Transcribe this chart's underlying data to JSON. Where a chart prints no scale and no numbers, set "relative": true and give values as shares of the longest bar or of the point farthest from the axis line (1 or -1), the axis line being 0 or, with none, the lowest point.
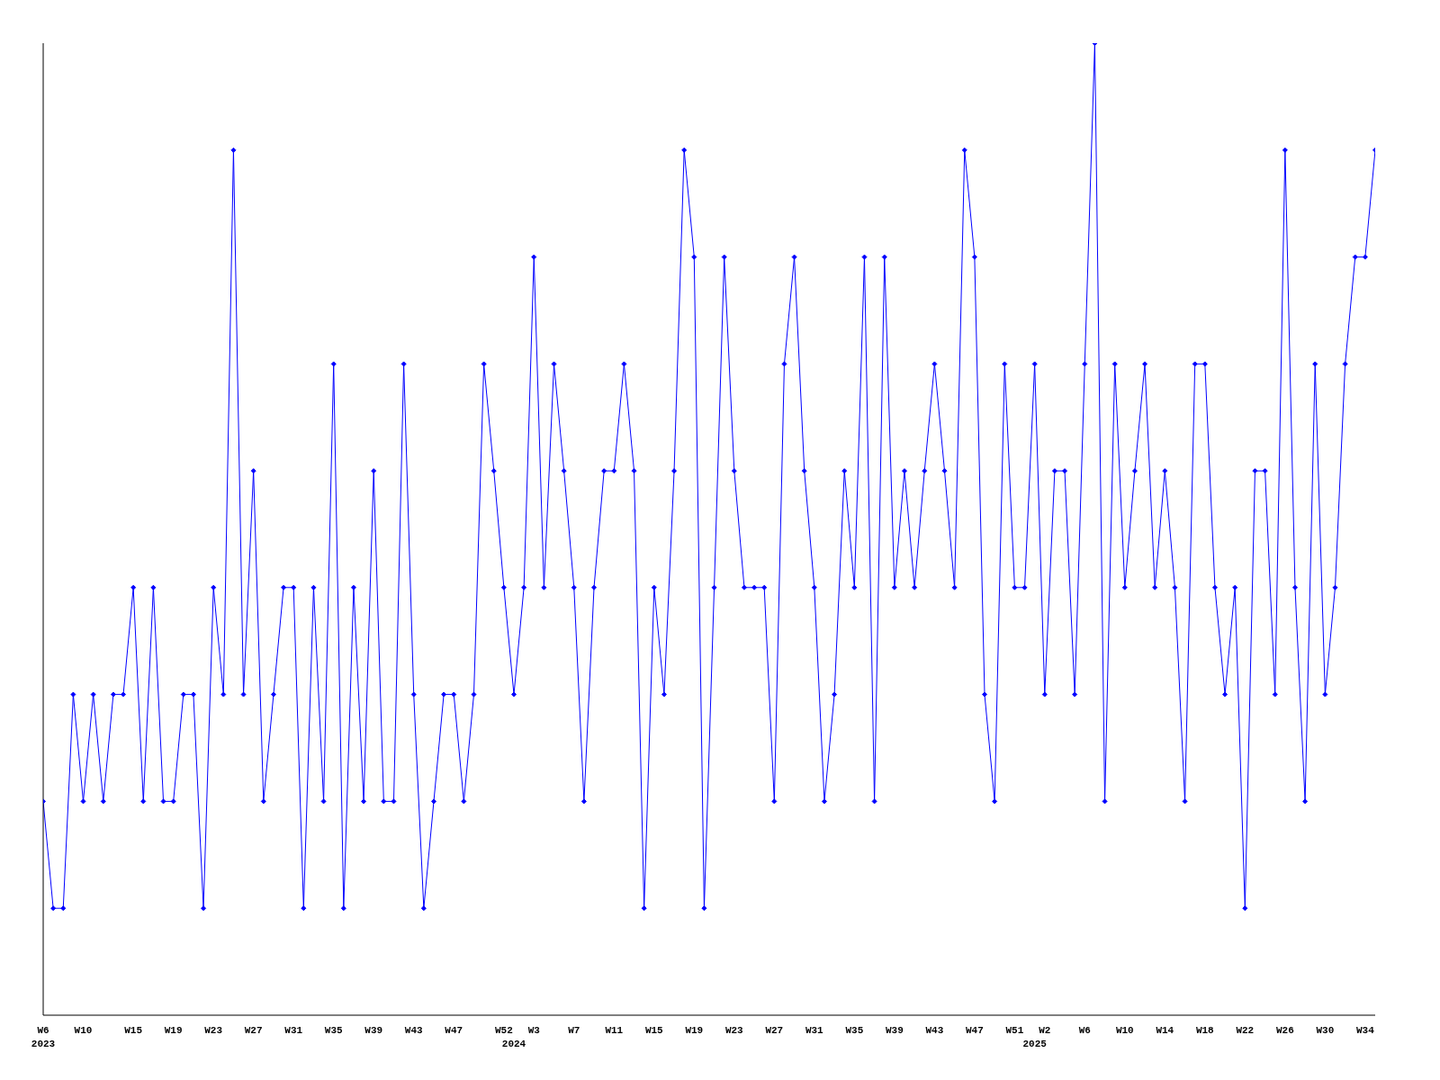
{
  "chart_data": {
    "type": "line",
    "relative": true,
    "marker": "diamond",
    "grid": false,
    "legend": false,
    "categories": [
      "W6\n2023",
      null,
      null,
      null,
      "W10",
      null,
      null,
      null,
      null,
      "W15",
      null,
      null,
      null,
      "W19",
      null,
      null,
      null,
      "W23",
      null,
      null,
      null,
      "W27",
      null,
      null,
      null,
      "W31",
      null,
      null,
      null,
      "W35",
      null,
      null,
      null,
      "W39",
      null,
      null,
      null,
      "W43",
      null,
      null,
      null,
      "W47",
      null,
      null,
      null,
      null,
      "W52",
      "\n2024",
      null,
      "W3",
      null,
      null,
      null,
      "W7",
      null,
      null,
      null,
      "W11",
      null,
      null,
      null,
      "W15",
      null,
      null,
      null,
      "W19",
      null,
      null,
      null,
      "W23",
      null,
      null,
      null,
      "W27",
      null,
      null,
      null,
      "W31",
      null,
      null,
      null,
      "W35",
      null,
      null,
      null,
      "W39",
      null,
      null,
      null,
      "W43",
      null,
      null,
      null,
      "W47",
      null,
      null,
      null,
      "W51",
      null,
      "\n2025",
      "W2",
      null,
      null,
      null,
      "W6",
      null,
      null,
      null,
      "W10",
      null,
      null,
      null,
      "W14",
      null,
      null,
      null,
      "W18",
      null,
      null,
      null,
      "W22",
      null,
      null,
      null,
      "W26",
      null,
      null,
      null,
      "W30",
      null,
      null,
      null,
      "W34",
      null
    ],
    "series": [
      {
        "color": "#0000ff",
        "values": [
          0.22,
          0.11,
          0.11,
          0.33,
          0.22,
          0.33,
          0.22,
          0.33,
          0.33,
          0.44,
          0.22,
          0.44,
          0.22,
          0.22,
          0.33,
          0.33,
          0.11,
          0.44,
          0.33,
          0.89,
          0.33,
          0.56,
          0.22,
          0.33,
          0.44,
          0.44,
          0.11,
          0.44,
          0.22,
          0.67,
          0.11,
          0.44,
          0.22,
          0.56,
          0.22,
          0.22,
          0.67,
          0.33,
          0.11,
          0.22,
          0.33,
          0.33,
          0.22,
          0.33,
          0.67,
          0.56,
          0.44,
          0.33,
          0.44,
          0.78,
          0.44,
          0.67,
          0.56,
          0.44,
          0.22,
          0.44,
          0.56,
          0.56,
          0.67,
          0.56,
          0.11,
          0.44,
          0.33,
          0.56,
          0.89,
          0.78,
          0.11,
          0.44,
          0.78,
          0.56,
          0.44,
          0.44,
          0.44,
          0.22,
          0.67,
          0.78,
          0.56,
          0.44,
          0.22,
          0.33,
          0.56,
          0.44,
          0.78,
          0.22,
          0.78,
          0.44,
          0.56,
          0.44,
          0.56,
          0.67,
          0.56,
          0.44,
          0.89,
          0.78,
          0.33,
          0.22,
          0.67,
          0.44,
          0.44,
          0.67,
          0.33,
          0.56,
          0.56,
          0.33,
          0.67,
          1,
          0.22,
          0.67,
          0.44,
          0.56,
          0.67,
          0.44,
          0.56,
          0.44,
          0.22,
          0.67,
          0.67,
          0.44,
          0.33,
          0.44,
          0.11,
          0.56,
          0.56,
          0.33,
          0.89,
          0.44,
          0.22,
          0.67,
          0.33,
          0.44,
          0.67,
          0.78,
          0.78,
          0.89
        ]
      }
    ]
  }
}
